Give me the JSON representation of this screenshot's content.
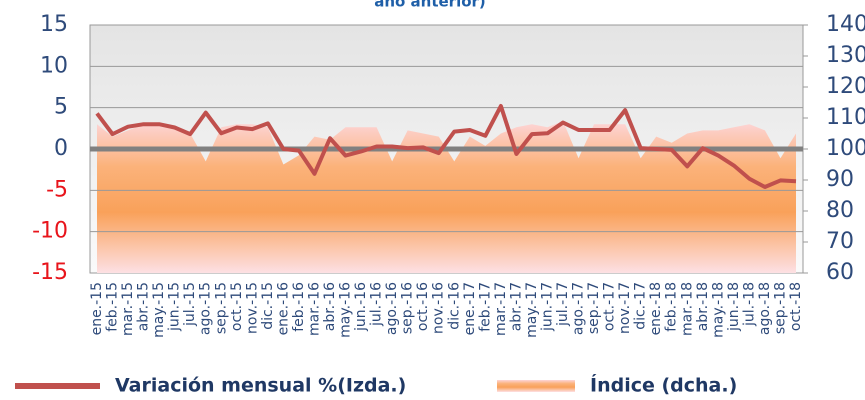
{
  "chart_data": {
    "type": "line",
    "title": "año anterior)",
    "categories": [
      "ene.-15",
      "feb.-15",
      "mar.-15",
      "abr.-15",
      "may.-15",
      "jun.-15",
      "jul.-15",
      "ago.-15",
      "sep.-15",
      "oct.-15",
      "nov.-15",
      "dic.-15",
      "ene.-16",
      "feb.-16",
      "mar.-16",
      "abr.-16",
      "may.-16",
      "jun.-16",
      "jul.-16",
      "ago.-16",
      "sep.-16",
      "oct.-16",
      "nov.-16",
      "dic.-16",
      "ene.-17",
      "feb.-17",
      "mar.-17",
      "abr.-17",
      "may.-17",
      "jun.-17",
      "jul.-17",
      "ago.-17",
      "sep.-17",
      "oct.-17",
      "nov.-17",
      "dic.-17",
      "ene.-18",
      "feb.-18",
      "mar.-18",
      "abr.-18",
      "may.-18",
      "jun.-18",
      "jul.-18",
      "ago.-18",
      "sep.-18",
      "oct.-18"
    ],
    "series": [
      {
        "name": "Variación mensual %(Izda.)",
        "type": "line",
        "color": "#c0504d",
        "values": [
          4.3,
          1.8,
          2.7,
          3.0,
          3.0,
          2.6,
          1.8,
          4.4,
          1.9,
          2.6,
          2.4,
          3.1,
          0.0,
          -0.2,
          -3.0,
          1.3,
          -0.8,
          -0.3,
          0.3,
          0.3,
          0.1,
          0.2,
          -0.5,
          2.1,
          2.3,
          1.6,
          5.2,
          -0.6,
          1.8,
          1.9,
          3.2,
          2.3,
          2.3,
          2.3,
          4.7,
          0.1,
          0.0,
          -0.1,
          -2.1,
          0.1,
          -0.8,
          -2.0,
          -3.6,
          -4.6,
          -3.8,
          -3.9
        ]
      },
      {
        "name": "Índice (dcha.)",
        "type": "area",
        "axis": "y2",
        "color": "#f9a15a",
        "values": [
          108,
          104,
          106,
          108,
          108,
          107,
          105,
          96,
          107,
          108,
          108,
          107,
          95,
          98,
          104,
          103,
          107,
          107,
          107,
          96,
          106,
          105,
          104,
          96,
          104,
          101,
          105,
          107,
          108,
          107,
          109,
          97,
          108,
          108,
          108,
          97,
          104,
          102,
          105,
          106,
          106,
          107,
          108,
          106,
          97,
          105
        ]
      }
    ],
    "ylim": [
      -15,
      15
    ],
    "yticks": [
      -15,
      -10,
      -5,
      0,
      5,
      10,
      15
    ],
    "y2lim": [
      60,
      140
    ],
    "y2ticks": [
      60,
      70,
      80,
      90,
      100,
      110,
      120,
      130,
      140
    ],
    "grid": true,
    "tick_color": "#2e4a7a",
    "negative_tick_color": "#e8141b",
    "legend": "bottom"
  }
}
